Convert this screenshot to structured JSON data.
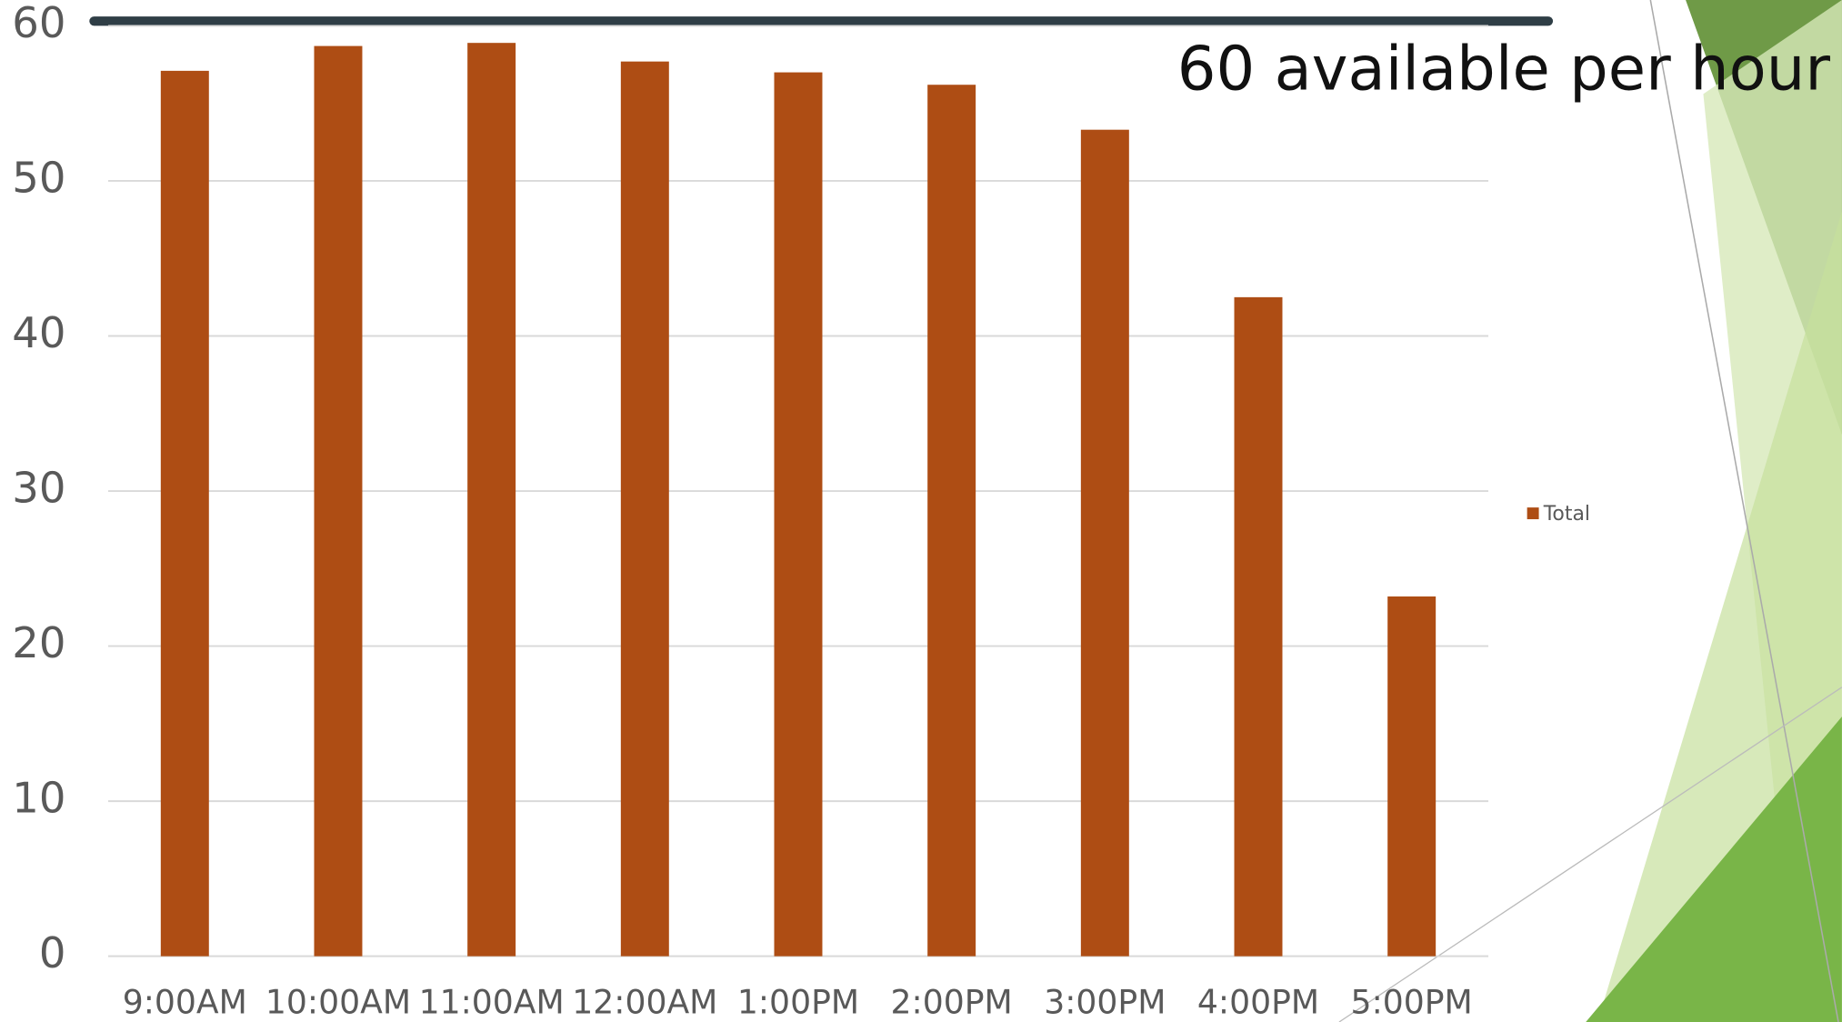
{
  "chart_data": {
    "type": "bar",
    "annotation": "60 available per hour",
    "categories": [
      "9:00AM",
      "10:00AM",
      "11:00AM",
      "12:00AM",
      "1:00PM",
      "2:00PM",
      "3:00PM",
      "4:00PM",
      "5:00PM"
    ],
    "series": [
      {
        "name": "Total",
        "color": "#ae4d14",
        "values": [
          57.1,
          58.7,
          58.9,
          57.7,
          57.0,
          56.2,
          53.3,
          42.5,
          23.2
        ]
      }
    ],
    "ylim": [
      0,
      60
    ],
    "yticks": [
      0,
      10,
      20,
      30,
      40,
      50,
      60
    ],
    "grid": true,
    "legend": "right"
  }
}
